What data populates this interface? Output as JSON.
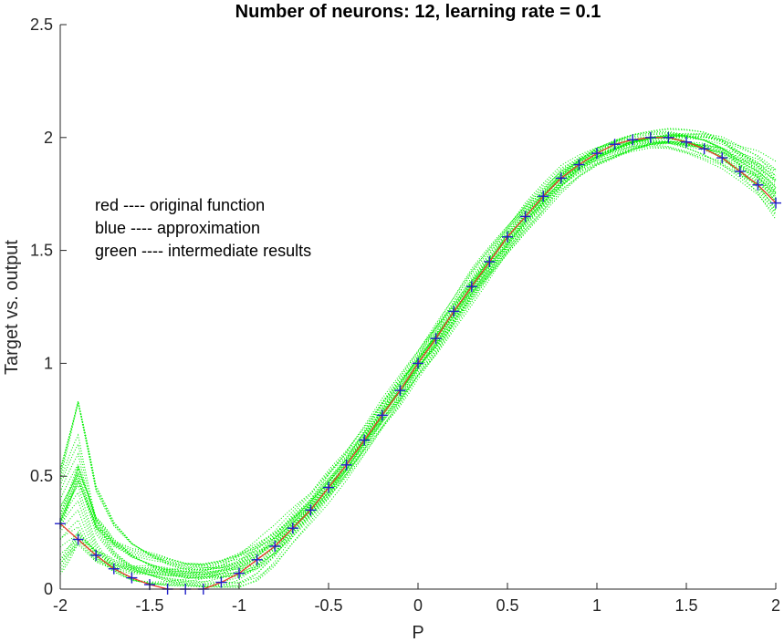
{
  "chart_data": {
    "type": "line",
    "title": "Number of neurons: 12, learning rate = 0.1",
    "xlabel": "P",
    "ylabel": "Target vs. output",
    "xlim": [
      -2,
      2
    ],
    "ylim": [
      0,
      2.5
    ],
    "x_ticks": [
      -2,
      -1.5,
      -1,
      -0.5,
      0,
      0.5,
      1,
      1.5,
      2
    ],
    "x_tick_labels": [
      "-2",
      "-1.5",
      "-1",
      "-0.5",
      "0",
      "0.5",
      "1",
      "1.5",
      "2"
    ],
    "y_ticks": [
      0,
      0.5,
      1,
      1.5,
      2,
      2.5
    ],
    "y_tick_labels": [
      "0",
      "0.5",
      "1",
      "1.5",
      "2",
      "2.5"
    ],
    "grid": false,
    "legend_text": [
      "red ---- original function",
      "blue ---- approximation",
      "green ---- intermediate results"
    ],
    "colors": {
      "original": "#e8382a",
      "approximation": "#1f1fc8",
      "intermediate": "#00ee00",
      "axis": "#262626"
    },
    "series": [
      {
        "role": "original",
        "style": "line",
        "x": [
          -2.0,
          -1.9,
          -1.8,
          -1.7,
          -1.6,
          -1.5,
          -1.4,
          -1.3,
          -1.2,
          -1.1,
          -1.0,
          -0.9,
          -0.8,
          -0.7,
          -0.6,
          -0.5,
          -0.4,
          -0.3,
          -0.2,
          -0.1,
          0.0,
          0.1,
          0.2,
          0.3,
          0.4,
          0.5,
          0.6,
          0.7,
          0.8,
          0.9,
          1.0,
          1.1,
          1.2,
          1.3,
          1.4,
          1.5,
          1.6,
          1.7,
          1.8,
          1.9,
          2.0
        ],
        "y": [
          0.29,
          0.22,
          0.15,
          0.09,
          0.05,
          0.02,
          0.0,
          0.0,
          0.0,
          0.03,
          0.07,
          0.13,
          0.19,
          0.27,
          0.35,
          0.45,
          0.55,
          0.66,
          0.77,
          0.88,
          1.0,
          1.11,
          1.23,
          1.34,
          1.45,
          1.56,
          1.65,
          1.74,
          1.82,
          1.88,
          1.93,
          1.97,
          1.99,
          2.0,
          2.0,
          1.98,
          1.95,
          1.91,
          1.85,
          1.79,
          1.71
        ]
      },
      {
        "role": "approximation",
        "style": "plus-markers",
        "x": [
          -2.0,
          -1.9,
          -1.8,
          -1.7,
          -1.6,
          -1.5,
          -1.4,
          -1.3,
          -1.2,
          -1.1,
          -1.0,
          -0.9,
          -0.8,
          -0.7,
          -0.6,
          -0.5,
          -0.4,
          -0.3,
          -0.2,
          -0.1,
          0.0,
          0.1,
          0.2,
          0.3,
          0.4,
          0.5,
          0.6,
          0.7,
          0.8,
          0.9,
          1.0,
          1.1,
          1.2,
          1.3,
          1.4,
          1.5,
          1.6,
          1.7,
          1.8,
          1.9,
          2.0
        ],
        "y": [
          0.29,
          0.22,
          0.15,
          0.09,
          0.05,
          0.02,
          0.0,
          0.0,
          0.0,
          0.03,
          0.07,
          0.13,
          0.19,
          0.27,
          0.35,
          0.45,
          0.55,
          0.66,
          0.77,
          0.88,
          1.0,
          1.11,
          1.23,
          1.34,
          1.45,
          1.56,
          1.65,
          1.74,
          1.82,
          1.88,
          1.93,
          1.97,
          1.99,
          2.0,
          2.0,
          1.98,
          1.95,
          1.91,
          1.85,
          1.79,
          1.71
        ]
      },
      {
        "role": "intermediate",
        "style": "dotted-band",
        "x": [
          -2.0,
          -1.9,
          -1.8,
          -1.7,
          -1.6,
          -1.5,
          -1.4,
          -1.3,
          -1.2,
          -1.1,
          -1.0,
          -0.9,
          -0.8,
          -0.7,
          -0.6,
          -0.5,
          -0.4,
          -0.3,
          -0.2,
          -0.1,
          0.0,
          0.1,
          0.2,
          0.3,
          0.4,
          0.5,
          0.6,
          0.7,
          0.8,
          0.9,
          1.0,
          1.1,
          1.2,
          1.3,
          1.4,
          1.5,
          1.6,
          1.7,
          1.8,
          1.9,
          2.0
        ],
        "y_low": [
          0.0,
          0.02,
          0.02,
          0.01,
          0.0,
          0.0,
          0.0,
          0.0,
          0.0,
          0.0,
          0.0,
          0.03,
          0.1,
          0.2,
          0.29,
          0.38,
          0.48,
          0.59,
          0.7,
          0.8,
          0.92,
          1.02,
          1.14,
          1.25,
          1.36,
          1.47,
          1.57,
          1.66,
          1.75,
          1.82,
          1.87,
          1.9,
          1.93,
          1.95,
          1.95,
          1.93,
          1.9,
          1.86,
          1.8,
          1.73,
          1.62
        ],
        "y_high": [
          0.58,
          0.88,
          0.46,
          0.3,
          0.22,
          0.18,
          0.15,
          0.13,
          0.13,
          0.15,
          0.19,
          0.24,
          0.29,
          0.36,
          0.43,
          0.53,
          0.62,
          0.73,
          0.85,
          0.96,
          1.07,
          1.19,
          1.3,
          1.42,
          1.52,
          1.62,
          1.72,
          1.8,
          1.88,
          1.93,
          1.97,
          2.0,
          2.02,
          2.03,
          2.04,
          2.04,
          2.04,
          2.02,
          1.98,
          1.95,
          1.9
        ]
      }
    ]
  }
}
